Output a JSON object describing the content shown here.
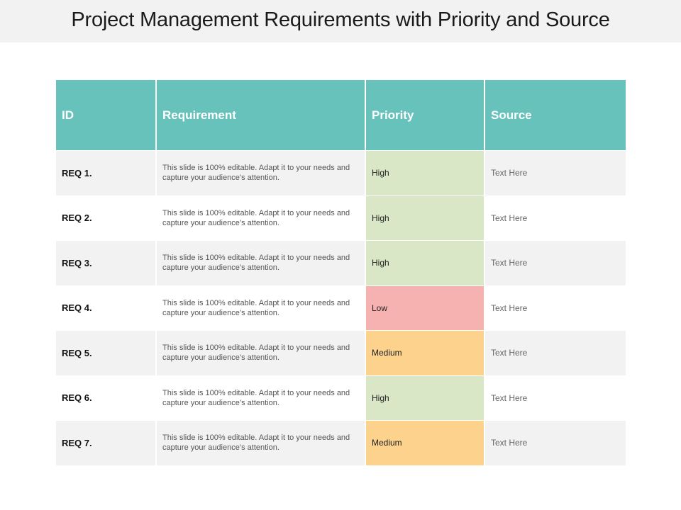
{
  "title": "Project Management Requirements with Priority and Source",
  "table": {
    "headers": {
      "id": "ID",
      "requirement": "Requirement",
      "priority": "Priority",
      "source": "Source"
    },
    "rows": [
      {
        "id": "REQ 1.",
        "requirement": "This slide is 100% editable. Adapt it to your needs and capture your audience’s attention.",
        "priority": "High",
        "source": "Text Here"
      },
      {
        "id": "REQ 2.",
        "requirement": "This slide is 100% editable. Adapt it to your needs and capture your audience’s attention.",
        "priority": "High",
        "source": "Text Here"
      },
      {
        "id": "REQ 3.",
        "requirement": "This slide is 100% editable. Adapt it to your needs and capture your audience’s attention.",
        "priority": "High",
        "source": "Text Here"
      },
      {
        "id": "REQ 4.",
        "requirement": "This slide is 100% editable. Adapt it to your needs and capture your audience’s attention.",
        "priority": "Low",
        "source": "Text Here"
      },
      {
        "id": "REQ 5.",
        "requirement": "This slide is 100% editable. Adapt it to your needs and capture your audience’s attention.",
        "priority": "Medium",
        "source": "Text Here"
      },
      {
        "id": "REQ 6.",
        "requirement": "This slide is 100% editable. Adapt it to your needs and capture your audience’s attention.",
        "priority": "High",
        "source": "Text Here"
      },
      {
        "id": "REQ 7.",
        "requirement": "This slide is 100% editable. Adapt it to your needs and capture your audience’s attention.",
        "priority": "Medium",
        "source": "Text Here"
      }
    ]
  },
  "colors": {
    "header": "#67c2bc",
    "high": "#d9e7c6",
    "low": "#f6b2b1",
    "medium": "#fcd28c"
  }
}
